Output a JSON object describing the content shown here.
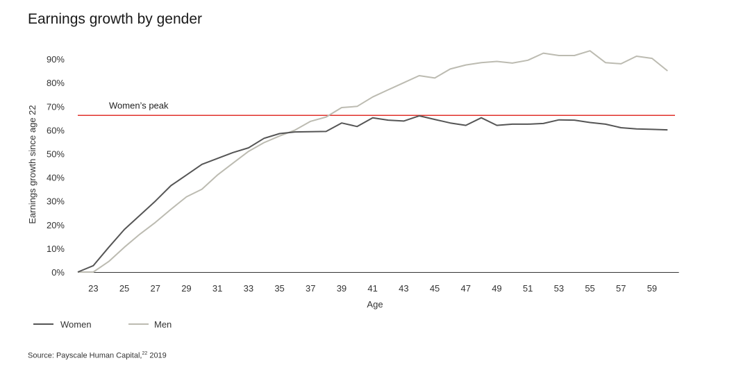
{
  "title": "Earnings growth by gender",
  "source": {
    "prefix": "Source: Payscale Human Capital,",
    "sup": "22",
    "suffix": " 2019"
  },
  "chart_data": {
    "type": "line",
    "title": "Earnings growth by gender",
    "xlabel": "Age",
    "ylabel": "Earnings growth since age 22",
    "x": [
      22,
      23,
      24,
      25,
      26,
      27,
      28,
      29,
      30,
      31,
      32,
      33,
      34,
      35,
      36,
      37,
      38,
      39,
      40,
      41,
      42,
      43,
      44,
      45,
      46,
      47,
      48,
      49,
      50,
      51,
      52,
      53,
      54,
      55,
      56,
      57,
      58,
      59,
      60
    ],
    "x_ticks": [
      23,
      25,
      27,
      29,
      31,
      33,
      35,
      37,
      39,
      41,
      43,
      45,
      47,
      49,
      51,
      53,
      55,
      57,
      59
    ],
    "y_ticks": [
      0,
      10,
      20,
      30,
      40,
      50,
      60,
      70,
      80,
      90
    ],
    "y_tick_labels": [
      "0%",
      "10%",
      "20%",
      "30%",
      "40%",
      "50%",
      "60%",
      "70%",
      "80%",
      "90%"
    ],
    "ylim": [
      0,
      95
    ],
    "xlim": [
      22,
      61
    ],
    "series": [
      {
        "name": "Women",
        "color": "#555555",
        "values": [
          0,
          2.7,
          10.5,
          18,
          24,
          30,
          36.5,
          41,
          45.5,
          48,
          50.5,
          52.5,
          56.5,
          58.5,
          59.2,
          59.3,
          59.4,
          63,
          61.5,
          65.2,
          64.2,
          63.8,
          66,
          64.5,
          63,
          62,
          65.2,
          62,
          62.5,
          62.5,
          62.8,
          64.3,
          64.2,
          63.2,
          62.5,
          61,
          60.5,
          60.3,
          60.1
        ]
      },
      {
        "name": "Men",
        "color": "#bcbbb1",
        "values": [
          0,
          0,
          4.5,
          10.5,
          16,
          21,
          26.5,
          31.8,
          35,
          41,
          46,
          51,
          54.7,
          57.5,
          60,
          63.7,
          65.5,
          69.5,
          70,
          74,
          77,
          80,
          83,
          82,
          85.8,
          87.5,
          88.5,
          89,
          88.3,
          89.5,
          92.5,
          91.5,
          91.5,
          93.5,
          88.5,
          88,
          91.2,
          90.3,
          85
        ]
      }
    ],
    "reference_line": {
      "value": 66.2,
      "label": "Women’s peak",
      "color": "#e0302a"
    },
    "legend": {
      "placement": "bottom-left"
    },
    "grid": false
  }
}
